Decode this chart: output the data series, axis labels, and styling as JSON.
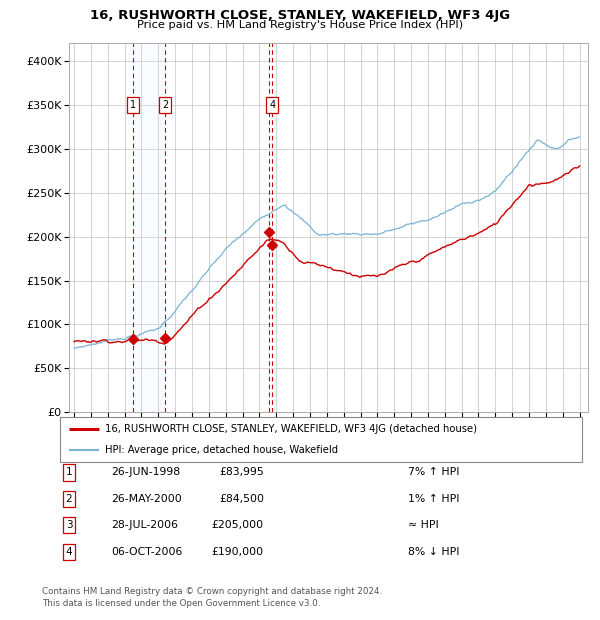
{
  "title": "16, RUSHWORTH CLOSE, STANLEY, WAKEFIELD, WF3 4JG",
  "subtitle": "Price paid vs. HM Land Registry's House Price Index (HPI)",
  "transactions": [
    {
      "num": 1,
      "date": "26-JUN-1998",
      "price": 83995,
      "note": "7% ↑ HPI",
      "x_year": 1998.49,
      "show_box": true
    },
    {
      "num": 2,
      "date": "26-MAY-2000",
      "price": 84500,
      "note": "1% ↑ HPI",
      "x_year": 2000.4,
      "show_box": true
    },
    {
      "num": 3,
      "date": "28-JUL-2006",
      "price": 205000,
      "note": "≈ HPI",
      "x_year": 2006.57,
      "show_box": false
    },
    {
      "num": 4,
      "date": "06-OCT-2006",
      "price": 190000,
      "note": "8% ↓ HPI",
      "x_year": 2006.77,
      "show_box": true
    }
  ],
  "hpi_line_color": "#7ab3d4",
  "property_line_color": "#cc0000",
  "marker_color": "#cc0000",
  "dashed_line_color": "#cc0000",
  "shade_color": "#ddeeff",
  "ylim": [
    0,
    420000
  ],
  "xlim": [
    1994.7,
    2025.5
  ],
  "yticks": [
    0,
    50000,
    100000,
    150000,
    200000,
    250000,
    300000,
    350000,
    400000
  ],
  "footer1": "Contains HM Land Registry data © Crown copyright and database right 2024.",
  "footer2": "This data is licensed under the Open Government Licence v3.0.",
  "legend1": "16, RUSHWORTH CLOSE, STANLEY, WAKEFIELD, WF3 4JG (detached house)",
  "legend2": "HPI: Average price, detached house, Wakefield",
  "table_data": [
    [
      1,
      "26-JUN-1998",
      "£83,995",
      "7% ↑ HPI"
    ],
    [
      2,
      "26-MAY-2000",
      "£84,500",
      "1% ↑ HPI"
    ],
    [
      3,
      "28-JUL-2006",
      "£205,000",
      "≈ HPI"
    ],
    [
      4,
      "06-OCT-2006",
      "£190,000",
      "8% ↓ HPI"
    ]
  ]
}
